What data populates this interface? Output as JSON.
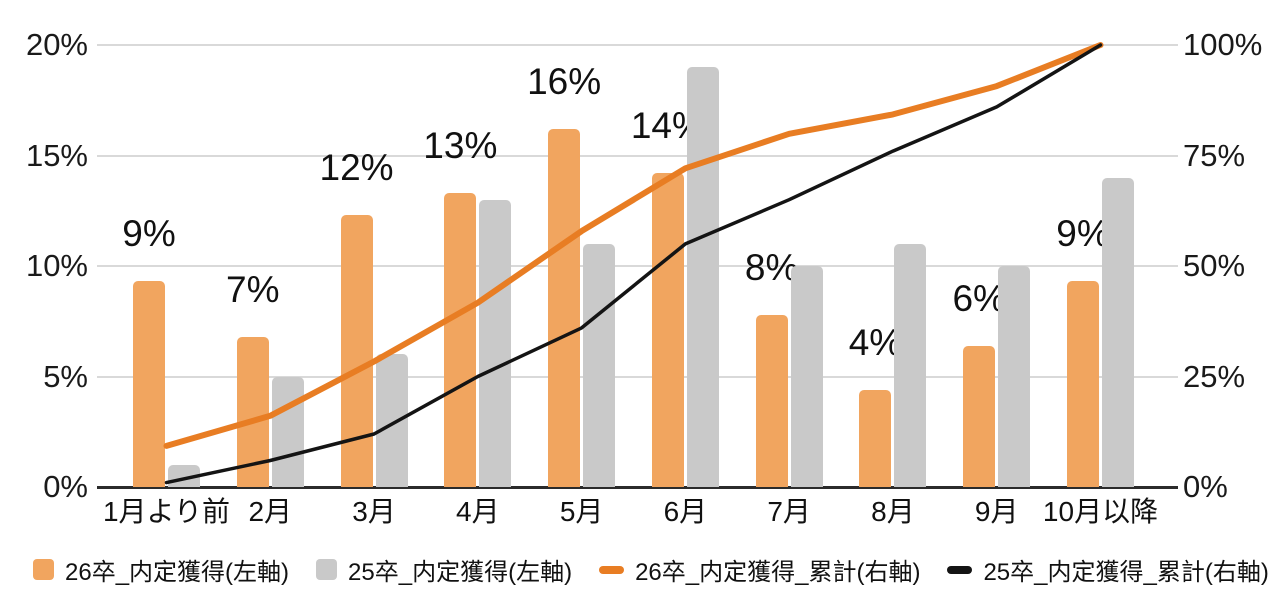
{
  "chart_data": {
    "type": "combo-bar-line",
    "title": "",
    "categories": [
      "1月より前",
      "2月",
      "3月",
      "4月",
      "5月",
      "6月",
      "7月",
      "8月",
      "9月",
      "10月以降"
    ],
    "series": [
      {
        "name": "26卒_内定獲得(左軸)",
        "type": "bar",
        "axis": "left",
        "color": "#F1A55F",
        "values": [
          9.3,
          6.8,
          12.3,
          13.3,
          16.2,
          14.2,
          7.8,
          4.4,
          6.4,
          9.3
        ],
        "data_labels": [
          "9%",
          "7%",
          "12%",
          "13%",
          "16%",
          "14%",
          "8%",
          "4%",
          "6%",
          "9%"
        ]
      },
      {
        "name": "25卒_内定獲得(左軸)",
        "type": "bar",
        "axis": "left",
        "color": "#C9C9C9",
        "values": [
          1,
          5,
          6,
          13,
          11,
          19,
          10,
          11,
          10,
          14
        ],
        "data_labels": []
      },
      {
        "name": "26卒_内定獲得_累計(右軸)",
        "type": "line",
        "axis": "right",
        "color": "#E87D23",
        "stroke_width": 6,
        "values": [
          9.3,
          16.1,
          28.4,
          41.7,
          57.9,
          72.1,
          79.9,
          84.3,
          90.7,
          100
        ]
      },
      {
        "name": "25卒_内定獲得_累計(右軸)",
        "type": "line",
        "axis": "right",
        "color": "#141414",
        "stroke_width": 3.5,
        "values": [
          1,
          6,
          12,
          25,
          36,
          55,
          65,
          76,
          86,
          100
        ]
      }
    ],
    "left_axis": {
      "min": 0,
      "max": 20,
      "tick_labels": [
        "0%",
        "5%",
        "10%",
        "15%",
        "20%"
      ]
    },
    "right_axis": {
      "min": 0,
      "max": 100,
      "tick_labels": [
        "0%",
        "25%",
        "50%",
        "75%",
        "100%"
      ]
    },
    "grid": true,
    "legend_position": "bottom",
    "colors": {
      "grid": "#d9d9d9",
      "axis_line": "#2b2b2b",
      "text": "#1a1a1a",
      "background": "#ffffff"
    }
  }
}
